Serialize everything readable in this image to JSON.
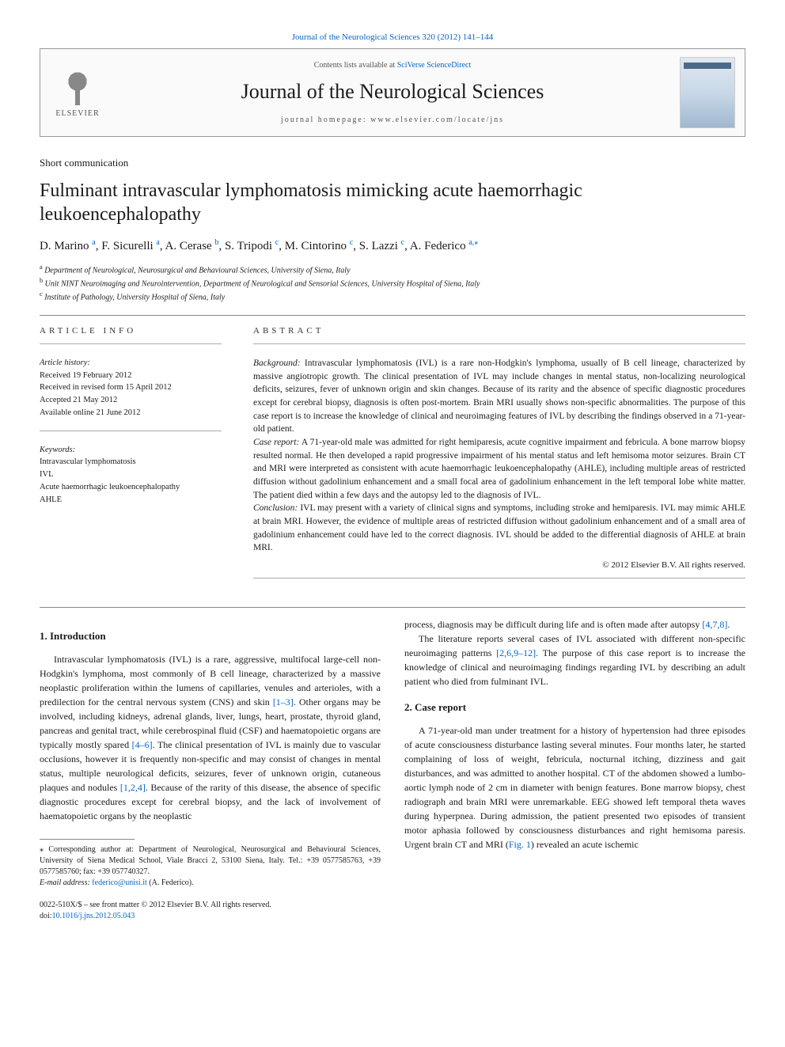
{
  "top_link": {
    "prefix": "",
    "journal": "Journal of the Neurological Sciences 320 (2012) 141–144"
  },
  "header": {
    "publisher_name": "ELSEVIER",
    "contents_prefix": "Contents lists available at ",
    "contents_link": "SciVerse ScienceDirect",
    "journal_name": "Journal of the Neurological Sciences",
    "homepage_prefix": "journal homepage: ",
    "homepage_url": "www.elsevier.com/locate/jns"
  },
  "article": {
    "type": "Short communication",
    "title": "Fulminant intravascular lymphomatosis mimicking acute haemorrhagic leukoencephalopathy",
    "authors_html": "D. Marino <sup>a</sup>, F. Sicurelli <sup>a</sup>, A. Cerase <sup>b</sup>, S. Tripodi <sup>c</sup>, M. Cintorino <sup>c</sup>, S. Lazzi <sup>c</sup>, A. Federico <sup>a,</sup>",
    "corresponding_mark": "⁎",
    "affiliations": [
      {
        "mark": "a",
        "text": "Department of Neurological, Neurosurgical and Behavioural Sciences, University of Siena, Italy"
      },
      {
        "mark": "b",
        "text": "Unit NINT Neuroimaging and Neurointervention, Department of Neurological and Sensorial Sciences, University Hospital of Siena, Italy"
      },
      {
        "mark": "c",
        "text": "Institute of Pathology, University Hospital of Siena, Italy"
      }
    ]
  },
  "article_info": {
    "label": "ARTICLE INFO",
    "history_label": "Article history:",
    "history": [
      "Received 19 February 2012",
      "Received in revised form 15 April 2012",
      "Accepted 21 May 2012",
      "Available online 21 June 2012"
    ],
    "keywords_label": "Keywords:",
    "keywords": [
      "Intravascular lymphomatosis",
      "IVL",
      "Acute haemorrhagic leukoencephalopathy",
      "AHLE"
    ]
  },
  "abstract": {
    "label": "ABSTRACT",
    "background_label": "Background:",
    "background": "Intravascular lymphomatosis (IVL) is a rare non-Hodgkin's lymphoma, usually of B cell lineage, characterized by massive angiotropic growth. The clinical presentation of IVL may include changes in mental status, non-localizing neurological deficits, seizures, fever of unknown origin and skin changes. Because of its rarity and the absence of specific diagnostic procedures except for cerebral biopsy, diagnosis is often post-mortem. Brain MRI usually shows non-specific abnormalities. The purpose of this case report is to increase the knowledge of clinical and neuroimaging features of IVL by describing the findings observed in a 71-year-old patient.",
    "case_label": "Case report:",
    "case": "A 71-year-old male was admitted for right hemiparesis, acute cognitive impairment and febricula. A bone marrow biopsy resulted normal. He then developed a rapid progressive impairment of his mental status and left hemisoma motor seizures. Brain CT and MRI were interpreted as consistent with acute haemorrhagic leukoencephalopathy (AHLE), including multiple areas of restricted diffusion without gadolinium enhancement and a small focal area of gadolinium enhancement in the left temporal lobe white matter. The patient died within a few days and the autopsy led to the diagnosis of IVL.",
    "conclusion_label": "Conclusion:",
    "conclusion": "IVL may present with a variety of clinical signs and symptoms, including stroke and hemiparesis. IVL may mimic AHLE at brain MRI. However, the evidence of multiple areas of restricted diffusion without gadolinium enhancement and of a small area of gadolinium enhancement could have led to the correct diagnosis. IVL should be added to the differential diagnosis of AHLE at brain MRI.",
    "copyright": "© 2012 Elsevier B.V. All rights reserved."
  },
  "body": {
    "intro_heading": "1. Introduction",
    "intro_p1_a": "Intravascular lymphomatosis (IVL) is a rare, aggressive, multifocal large-cell non-Hodgkin's lymphoma, most commonly of B cell lineage, characterized by a massive neoplastic proliferation within the lumens of capillaries, venules and arterioles, with a predilection for the central nervous system (CNS) and skin ",
    "intro_ref1": "[1–3]",
    "intro_p1_b": ". Other organs may be involved, including kidneys, adrenal glands, liver, lungs, heart, prostate, thyroid gland, pancreas and genital tract, while cerebrospinal fluid (CSF) and haematopoietic organs are typically mostly spared ",
    "intro_ref2": "[4–6]",
    "intro_p1_c": ". The clinical presentation of IVL is mainly due to vascular occlusions, however it is frequently non-specific and may consist of changes in mental status, multiple neurological deficits, seizures, fever of unknown origin, cutaneous plaques and nodules ",
    "intro_ref3": "[1,2,4]",
    "intro_p1_d": ". Because of the rarity of this disease, the absence of specific diagnostic procedures except for cerebral biopsy, and the lack of involvement of haematopoietic organs by the neoplastic",
    "col2_p1_a": "process, diagnosis may be difficult during life and is often made after autopsy ",
    "col2_ref1": "[4,7,8]",
    "col2_p1_b": ".",
    "col2_p2_a": "The literature reports several cases of IVL associated with different non-specific neuroimaging patterns ",
    "col2_ref2": "[2,6,9–12]",
    "col2_p2_b": ". The purpose of this case report is to increase the knowledge of clinical and neuroimaging findings regarding IVL by describing an adult patient who died from fulminant IVL.",
    "case_heading": "2. Case report",
    "case_p1_a": "A 71-year-old man under treatment for a history of hypertension had three episodes of acute consciousness disturbance lasting several minutes. Four months later, he started complaining of loss of weight, febricula, nocturnal itching, dizziness and gait disturbances, and was admitted to another hospital. CT of the abdomen showed a lumbo-aortic lymph node of 2 cm in diameter with benign features. Bone marrow biopsy, chest radiograph and brain MRI were unremarkable. EEG showed left temporal theta waves during hyperpnea. During admission, the patient presented two episodes of transient motor aphasia followed by consciousness disturbances and right hemisoma paresis. Urgent brain CT and MRI (",
    "case_fig_ref": "Fig. 1",
    "case_p1_b": ") revealed an acute ischemic"
  },
  "footnote": {
    "corr_label": "⁎",
    "corr_text": "Corresponding author at: Department of Neurological, Neurosurgical and Behavioural Sciences, University of Siena Medical School, Viale Bracci 2, 53100 Siena, Italy. Tel.: +39 0577585763, +39 0577585760; fax: +39 057740327.",
    "email_label": "E-mail address:",
    "email": "federico@unisi.it",
    "email_suffix": "(A. Federico)."
  },
  "footer": {
    "line1": "0022-510X/$ – see front matter © 2012 Elsevier B.V. All rights reserved.",
    "doi_label": "doi:",
    "doi": "10.1016/j.jns.2012.05.043"
  },
  "colors": {
    "link": "#0066cc",
    "text": "#1a1a1a",
    "rule": "#888888",
    "bg": "#ffffff"
  }
}
